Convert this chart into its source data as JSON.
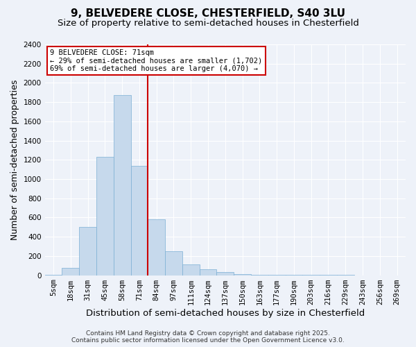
{
  "title1": "9, BELVEDERE CLOSE, CHESTERFIELD, S40 3LU",
  "title2": "Size of property relative to semi-detached houses in Chesterfield",
  "xlabel": "Distribution of semi-detached houses by size in Chesterfield",
  "ylabel": "Number of semi-detached properties",
  "categories": [
    "5sqm",
    "18sqm",
    "31sqm",
    "45sqm",
    "58sqm",
    "71sqm",
    "84sqm",
    "97sqm",
    "111sqm",
    "124sqm",
    "137sqm",
    "150sqm",
    "163sqm",
    "177sqm",
    "190sqm",
    "203sqm",
    "216sqm",
    "229sqm",
    "243sqm",
    "256sqm",
    "269sqm"
  ],
  "bar_heights": [
    5,
    75,
    500,
    1230,
    1870,
    1140,
    580,
    250,
    115,
    60,
    35,
    10,
    5,
    3,
    2,
    2,
    1,
    1,
    0,
    0,
    0
  ],
  "bar_color": "#c6d9ec",
  "bar_edge_color": "#7bafd4",
  "pct_smaller": "29%",
  "pct_larger": "69%",
  "count_smaller": "1,702",
  "count_larger": "4,070",
  "vline_color": "#cc0000",
  "vline_x_index": 5,
  "ylim": [
    0,
    2400
  ],
  "yticks": [
    0,
    200,
    400,
    600,
    800,
    1000,
    1200,
    1400,
    1600,
    1800,
    2000,
    2200,
    2400
  ],
  "background_color": "#eef2f9",
  "grid_color": "#ffffff",
  "title_fontsize": 11,
  "subtitle_fontsize": 9.5,
  "axis_label_fontsize": 9,
  "tick_fontsize": 7.5,
  "footer_fontsize": 6.5,
  "footer1": "Contains HM Land Registry data © Crown copyright and database right 2025.",
  "footer2": "Contains public sector information licensed under the Open Government Licence v3.0."
}
